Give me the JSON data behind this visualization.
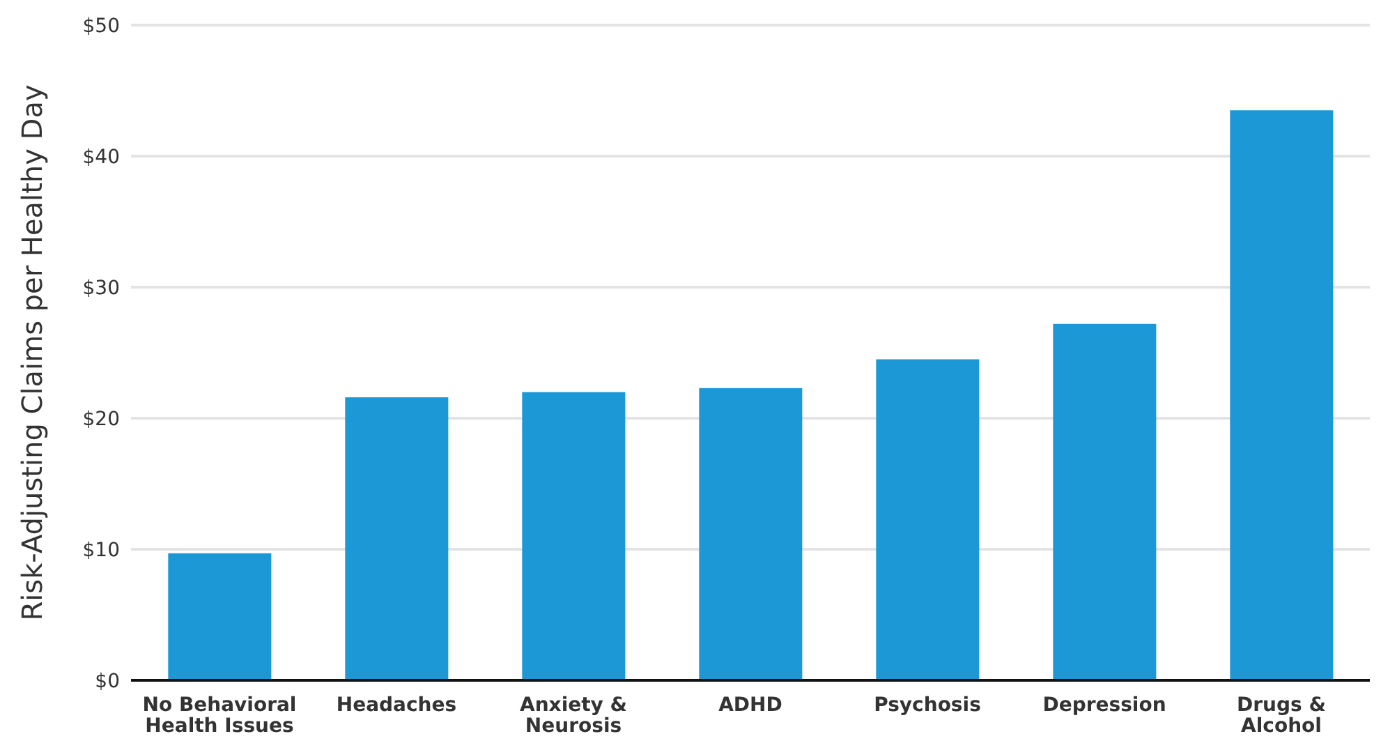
{
  "chart_data": {
    "type": "bar",
    "ylabel": "Risk-Adjusting Claims per Healthy Day",
    "categories": [
      "No Behavioral Health Issues",
      "Headaches",
      "Anxiety & Neurosis",
      "ADHD",
      "Psychosis",
      "Depression",
      "Drugs & Alcohol"
    ],
    "values": [
      9.7,
      21.6,
      22.0,
      22.3,
      24.5,
      27.2,
      43.5
    ],
    "color": "#1b98d5",
    "ylim": [
      0,
      50
    ],
    "yticks": [
      {
        "value": 0,
        "label": "$0"
      },
      {
        "value": 10,
        "label": "$10"
      },
      {
        "value": 20,
        "label": "$20"
      },
      {
        "value": 30,
        "label": "$30"
      },
      {
        "value": 40,
        "label": "$40"
      },
      {
        "value": 50,
        "label": "$50"
      }
    ],
    "grid": "y",
    "legend": false
  }
}
